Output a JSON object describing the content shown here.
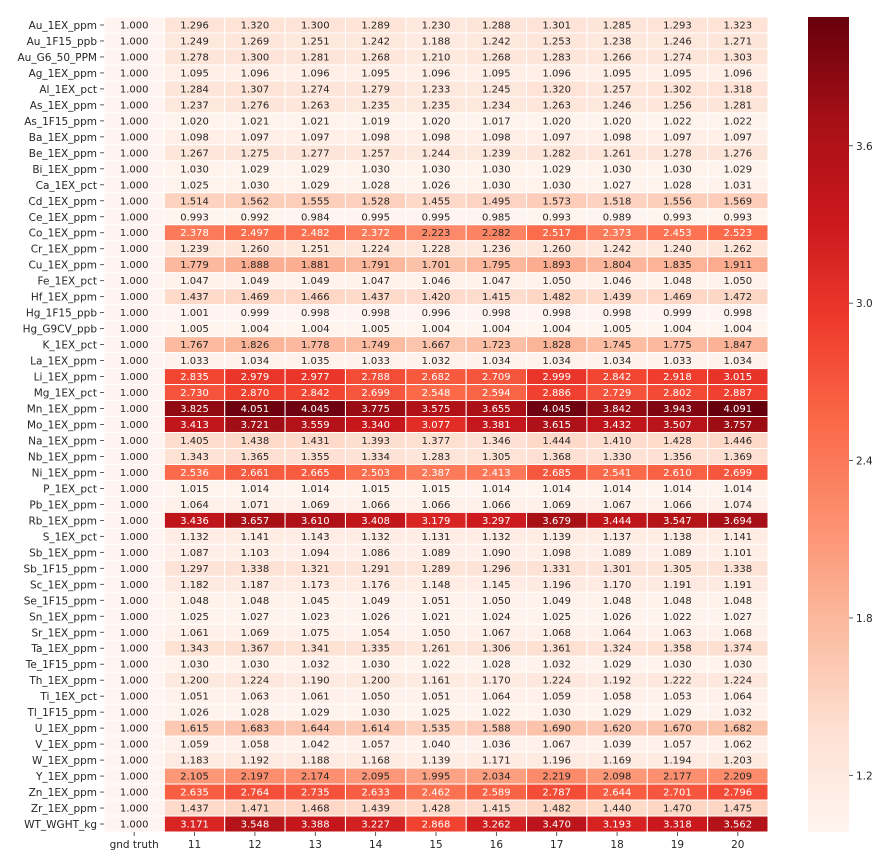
{
  "chart_data": {
    "type": "heatmap",
    "columns": [
      "gnd truth",
      "11",
      "12",
      "13",
      "14",
      "15",
      "16",
      "17",
      "18",
      "19",
      "20"
    ],
    "rows": [
      "Au_1EX_ppm",
      "Au_1F15_ppb",
      "Au_G6_50_PPM",
      "Ag_1EX_ppm",
      "Al_1EX_pct",
      "As_1EX_ppm",
      "As_1F15_ppm",
      "Ba_1EX_ppm",
      "Be_1EX_ppm",
      "Bi_1EX_ppm",
      "Ca_1EX_pct",
      "Cd_1EX_ppm",
      "Ce_1EX_ppm",
      "Co_1EX_ppm",
      "Cr_1EX_ppm",
      "Cu_1EX_ppm",
      "Fe_1EX_pct",
      "Hf_1EX_ppm",
      "Hg_1F15_ppb",
      "Hg_G9CV_ppb",
      "K_1EX_pct",
      "La_1EX_ppm",
      "Li_1EX_ppm",
      "Mg_1EX_pct",
      "Mn_1EX_ppm",
      "Mo_1EX_ppm",
      "Na_1EX_ppm",
      "Nb_1EX_ppm",
      "Ni_1EX_ppm",
      "P_1EX_pct",
      "Pb_1EX_ppm",
      "Rb_1EX_ppm",
      "S_1EX_pct",
      "Sb_1EX_ppm",
      "Sb_1F15_ppm",
      "Sc_1EX_ppm",
      "Se_1F15_ppm",
      "Sn_1EX_ppm",
      "Sr_1EX_ppm",
      "Ta_1EX_ppm",
      "Te_1F15_ppm",
      "Th_1EX_ppm",
      "Ti_1EX_pct",
      "Tl_1F15_ppm",
      "U_1EX_ppm",
      "V_1EX_ppm",
      "W_1EX_ppm",
      "Y_1EX_ppm",
      "Zn_1EX_ppm",
      "Zr_1EX_ppm",
      "WT_WGHT_kg"
    ],
    "values": [
      [
        "1.000",
        "1.296",
        "1.320",
        "1.300",
        "1.289",
        "1.230",
        "1.288",
        "1.301",
        "1.285",
        "1.293",
        "1.323"
      ],
      [
        "1.000",
        "1.249",
        "1.269",
        "1.251",
        "1.242",
        "1.188",
        "1.242",
        "1.253",
        "1.238",
        "1.246",
        "1.271"
      ],
      [
        "1.000",
        "1.278",
        "1.300",
        "1.281",
        "1.268",
        "1.210",
        "1.268",
        "1.283",
        "1.266",
        "1.274",
        "1.303"
      ],
      [
        "1.000",
        "1.095",
        "1.096",
        "1.096",
        "1.095",
        "1.096",
        "1.095",
        "1.096",
        "1.095",
        "1.095",
        "1.096"
      ],
      [
        "1.000",
        "1.284",
        "1.307",
        "1.274",
        "1.279",
        "1.233",
        "1.245",
        "1.320",
        "1.257",
        "1.302",
        "1.318"
      ],
      [
        "1.000",
        "1.237",
        "1.276",
        "1.263",
        "1.235",
        "1.235",
        "1.234",
        "1.263",
        "1.246",
        "1.256",
        "1.281"
      ],
      [
        "1.000",
        "1.020",
        "1.021",
        "1.021",
        "1.019",
        "1.020",
        "1.017",
        "1.020",
        "1.020",
        "1.022",
        "1.022"
      ],
      [
        "1.000",
        "1.098",
        "1.097",
        "1.097",
        "1.098",
        "1.098",
        "1.098",
        "1.097",
        "1.098",
        "1.097",
        "1.097"
      ],
      [
        "1.000",
        "1.267",
        "1.275",
        "1.277",
        "1.257",
        "1.244",
        "1.239",
        "1.282",
        "1.261",
        "1.278",
        "1.276"
      ],
      [
        "1.000",
        "1.030",
        "1.029",
        "1.029",
        "1.030",
        "1.030",
        "1.030",
        "1.029",
        "1.030",
        "1.030",
        "1.029"
      ],
      [
        "1.000",
        "1.025",
        "1.030",
        "1.029",
        "1.028",
        "1.026",
        "1.030",
        "1.030",
        "1.027",
        "1.028",
        "1.031"
      ],
      [
        "1.000",
        "1.514",
        "1.562",
        "1.555",
        "1.528",
        "1.455",
        "1.495",
        "1.573",
        "1.518",
        "1.556",
        "1.569"
      ],
      [
        "1.000",
        "0.993",
        "0.992",
        "0.984",
        "0.995",
        "0.995",
        "0.985",
        "0.993",
        "0.989",
        "0.993",
        "0.993"
      ],
      [
        "1.000",
        "2.378",
        "2.497",
        "2.482",
        "2.372",
        "2.223",
        "2.282",
        "2.517",
        "2.373",
        "2.453",
        "2.523"
      ],
      [
        "1.000",
        "1.239",
        "1.260",
        "1.251",
        "1.224",
        "1.228",
        "1.236",
        "1.260",
        "1.242",
        "1.240",
        "1.262"
      ],
      [
        "1.000",
        "1.779",
        "1.888",
        "1.881",
        "1.791",
        "1.701",
        "1.795",
        "1.893",
        "1.804",
        "1.835",
        "1.911"
      ],
      [
        "1.000",
        "1.047",
        "1.049",
        "1.049",
        "1.047",
        "1.046",
        "1.047",
        "1.050",
        "1.046",
        "1.048",
        "1.050"
      ],
      [
        "1.000",
        "1.437",
        "1.469",
        "1.466",
        "1.437",
        "1.420",
        "1.415",
        "1.482",
        "1.439",
        "1.469",
        "1.472"
      ],
      [
        "1.000",
        "1.001",
        "0.999",
        "0.998",
        "0.998",
        "0.996",
        "0.998",
        "0.998",
        "0.998",
        "0.999",
        "0.998"
      ],
      [
        "1.000",
        "1.005",
        "1.004",
        "1.004",
        "1.005",
        "1.004",
        "1.004",
        "1.004",
        "1.005",
        "1.004",
        "1.004"
      ],
      [
        "1.000",
        "1.767",
        "1.826",
        "1.778",
        "1.749",
        "1.667",
        "1.723",
        "1.828",
        "1.745",
        "1.775",
        "1.847"
      ],
      [
        "1.000",
        "1.033",
        "1.034",
        "1.035",
        "1.033",
        "1.032",
        "1.034",
        "1.034",
        "1.034",
        "1.033",
        "1.034"
      ],
      [
        "1.000",
        "2.835",
        "2.979",
        "2.977",
        "2.788",
        "2.682",
        "2.709",
        "2.999",
        "2.842",
        "2.918",
        "3.015"
      ],
      [
        "1.000",
        "2.730",
        "2.870",
        "2.842",
        "2.699",
        "2.548",
        "2.594",
        "2.886",
        "2.729",
        "2.802",
        "2.887"
      ],
      [
        "1.000",
        "3.825",
        "4.051",
        "4.045",
        "3.775",
        "3.575",
        "3.655",
        "4.045",
        "3.842",
        "3.943",
        "4.091"
      ],
      [
        "1.000",
        "3.413",
        "3.721",
        "3.559",
        "3.340",
        "3.077",
        "3.381",
        "3.615",
        "3.432",
        "3.507",
        "3.757"
      ],
      [
        "1.000",
        "1.405",
        "1.438",
        "1.431",
        "1.393",
        "1.377",
        "1.346",
        "1.444",
        "1.410",
        "1.428",
        "1.446"
      ],
      [
        "1.000",
        "1.343",
        "1.365",
        "1.355",
        "1.334",
        "1.283",
        "1.305",
        "1.368",
        "1.330",
        "1.356",
        "1.369"
      ],
      [
        "1.000",
        "2.536",
        "2.661",
        "2.665",
        "2.503",
        "2.387",
        "2.413",
        "2.685",
        "2.541",
        "2.610",
        "2.699"
      ],
      [
        "1.000",
        "1.015",
        "1.014",
        "1.014",
        "1.015",
        "1.015",
        "1.014",
        "1.014",
        "1.014",
        "1.014",
        "1.014"
      ],
      [
        "1.000",
        "1.064",
        "1.071",
        "1.069",
        "1.066",
        "1.066",
        "1.066",
        "1.069",
        "1.067",
        "1.066",
        "1.074"
      ],
      [
        "1.000",
        "3.436",
        "3.657",
        "3.610",
        "3.408",
        "3.179",
        "3.297",
        "3.679",
        "3.444",
        "3.547",
        "3.694"
      ],
      [
        "1.000",
        "1.132",
        "1.141",
        "1.143",
        "1.132",
        "1.131",
        "1.132",
        "1.139",
        "1.137",
        "1.138",
        "1.141"
      ],
      [
        "1.000",
        "1.087",
        "1.103",
        "1.094",
        "1.086",
        "1.089",
        "1.090",
        "1.098",
        "1.089",
        "1.089",
        "1.101"
      ],
      [
        "1.000",
        "1.297",
        "1.338",
        "1.321",
        "1.291",
        "1.289",
        "1.296",
        "1.331",
        "1.301",
        "1.305",
        "1.338"
      ],
      [
        "1.000",
        "1.182",
        "1.187",
        "1.173",
        "1.176",
        "1.148",
        "1.145",
        "1.196",
        "1.170",
        "1.191",
        "1.191"
      ],
      [
        "1.000",
        "1.048",
        "1.048",
        "1.045",
        "1.049",
        "1.051",
        "1.050",
        "1.049",
        "1.048",
        "1.048",
        "1.048"
      ],
      [
        "1.000",
        "1.025",
        "1.027",
        "1.023",
        "1.026",
        "1.021",
        "1.024",
        "1.025",
        "1.026",
        "1.022",
        "1.027"
      ],
      [
        "1.000",
        "1.061",
        "1.069",
        "1.075",
        "1.054",
        "1.050",
        "1.067",
        "1.068",
        "1.064",
        "1.063",
        "1.068"
      ],
      [
        "1.000",
        "1.343",
        "1.367",
        "1.341",
        "1.335",
        "1.261",
        "1.306",
        "1.361",
        "1.324",
        "1.358",
        "1.374"
      ],
      [
        "1.000",
        "1.030",
        "1.030",
        "1.032",
        "1.030",
        "1.022",
        "1.028",
        "1.032",
        "1.029",
        "1.030",
        "1.030"
      ],
      [
        "1.000",
        "1.200",
        "1.224",
        "1.190",
        "1.200",
        "1.161",
        "1.170",
        "1.224",
        "1.192",
        "1.222",
        "1.224"
      ],
      [
        "1.000",
        "1.051",
        "1.063",
        "1.061",
        "1.050",
        "1.051",
        "1.064",
        "1.059",
        "1.058",
        "1.053",
        "1.064"
      ],
      [
        "1.000",
        "1.026",
        "1.028",
        "1.029",
        "1.030",
        "1.025",
        "1.022",
        "1.030",
        "1.029",
        "1.029",
        "1.032"
      ],
      [
        "1.000",
        "1.615",
        "1.683",
        "1.644",
        "1.614",
        "1.535",
        "1.588",
        "1.690",
        "1.620",
        "1.670",
        "1.682"
      ],
      [
        "1.000",
        "1.059",
        "1.058",
        "1.042",
        "1.057",
        "1.040",
        "1.036",
        "1.067",
        "1.039",
        "1.057",
        "1.062"
      ],
      [
        "1.000",
        "1.183",
        "1.192",
        "1.188",
        "1.168",
        "1.139",
        "1.171",
        "1.196",
        "1.169",
        "1.194",
        "1.203"
      ],
      [
        "1.000",
        "2.105",
        "2.197",
        "2.174",
        "2.095",
        "1.995",
        "2.034",
        "2.219",
        "2.098",
        "2.177",
        "2.209"
      ],
      [
        "1.000",
        "2.635",
        "2.764",
        "2.735",
        "2.633",
        "2.462",
        "2.589",
        "2.787",
        "2.644",
        "2.701",
        "2.796"
      ],
      [
        "1.000",
        "1.437",
        "1.471",
        "1.468",
        "1.439",
        "1.428",
        "1.415",
        "1.482",
        "1.440",
        "1.470",
        "1.475"
      ],
      [
        "1.000",
        "3.171",
        "3.548",
        "3.388",
        "3.227",
        "2.868",
        "3.262",
        "3.470",
        "3.193",
        "3.318",
        "3.562"
      ]
    ],
    "colorscale": "Reds",
    "color_range": [
      0.984,
      4.091
    ],
    "colorbar_ticks": [
      "1.2",
      "1.8",
      "2.4",
      "3.0",
      "3.6"
    ],
    "title": "",
    "xlabel": "",
    "ylabel": ""
  }
}
